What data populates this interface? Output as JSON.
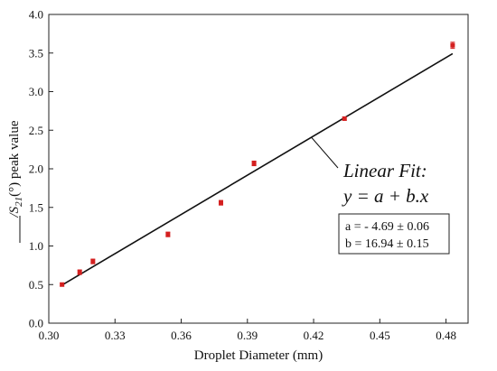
{
  "chart_data": {
    "type": "scatter",
    "xlabel": "Droplet Diameter (mm)",
    "ylabel": {
      "prefix": "/S",
      "subscript": "21",
      "suffix": "(°) peak value"
    },
    "xlim": [
      0.3,
      0.49
    ],
    "ylim": [
      0.0,
      4.0
    ],
    "xticks": [
      0.3,
      0.33,
      0.36,
      0.39,
      0.42,
      0.45,
      0.48
    ],
    "xtick_labels": [
      "0.30",
      "0.33",
      "0.36",
      "0.39",
      "0.42",
      "0.45",
      "0.48"
    ],
    "yticks": [
      0.0,
      0.5,
      1.0,
      1.5,
      2.0,
      2.5,
      3.0,
      3.5,
      4.0
    ],
    "ytick_labels": [
      "0.0",
      "0.5",
      "1.0",
      "1.5",
      "2.0",
      "2.5",
      "3.0",
      "3.5",
      "4.0"
    ],
    "grid": false,
    "series": [
      {
        "marker": "square",
        "color": "#d42020",
        "x": [
          0.306,
          0.314,
          0.32,
          0.354,
          0.378,
          0.393,
          0.434,
          0.483
        ],
        "y": [
          0.5,
          0.66,
          0.8,
          1.15,
          1.56,
          2.07,
          2.65,
          3.6
        ],
        "err": [
          0.02,
          0.03,
          0.03,
          0.03,
          0.03,
          0.03,
          0.02,
          0.04
        ]
      }
    ],
    "fit": {
      "x_range": [
        0.306,
        0.483
      ],
      "a": -4.69,
      "b": 16.94,
      "color": "#111111"
    },
    "annotation": {
      "line1": "Linear Fit:",
      "line2": "y = a + b.x",
      "param_a": "a = - 4.69 ± 0.06",
      "param_b": "b = 16.94 ± 0.15"
    }
  }
}
